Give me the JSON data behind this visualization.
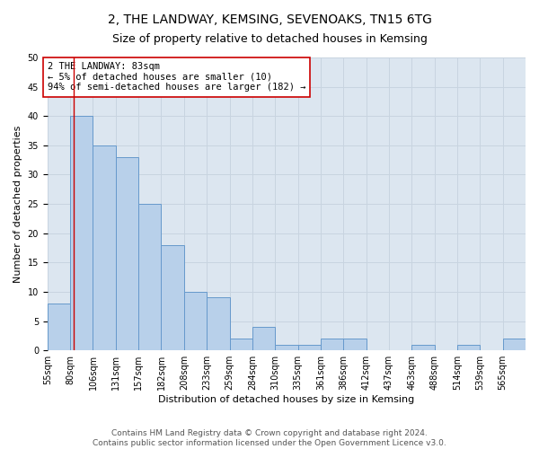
{
  "title": "2, THE LANDWAY, KEMSING, SEVENOAKS, TN15 6TG",
  "subtitle": "Size of property relative to detached houses in Kemsing",
  "xlabel": "Distribution of detached houses by size in Kemsing",
  "ylabel": "Number of detached properties",
  "bin_labels": [
    "55sqm",
    "80sqm",
    "106sqm",
    "131sqm",
    "157sqm",
    "182sqm",
    "208sqm",
    "233sqm",
    "259sqm",
    "284sqm",
    "310sqm",
    "335sqm",
    "361sqm",
    "386sqm",
    "412sqm",
    "437sqm",
    "463sqm",
    "488sqm",
    "514sqm",
    "539sqm",
    "565sqm"
  ],
  "values": [
    8,
    40,
    35,
    33,
    25,
    18,
    10,
    9,
    2,
    4,
    1,
    1,
    2,
    2,
    0,
    0,
    1,
    0,
    1,
    0,
    2
  ],
  "bar_color": "#b8d0ea",
  "bar_edge_color": "#6699cc",
  "property_line_index": 1.15,
  "property_line_color": "#cc0000",
  "annotation_text": "2 THE LANDWAY: 83sqm\n← 5% of detached houses are smaller (10)\n94% of semi-detached houses are larger (182) →",
  "annotation_box_color": "#ffffff",
  "annotation_box_edge": "#cc0000",
  "ylim": [
    0,
    50
  ],
  "yticks": [
    0,
    5,
    10,
    15,
    20,
    25,
    30,
    35,
    40,
    45,
    50
  ],
  "grid_color": "#c8d4e0",
  "bg_color": "#dce6f0",
  "footer_line1": "Contains HM Land Registry data © Crown copyright and database right 2024.",
  "footer_line2": "Contains public sector information licensed under the Open Government Licence v3.0.",
  "title_fontsize": 10,
  "subtitle_fontsize": 9,
  "axis_label_fontsize": 8,
  "tick_fontsize": 7,
  "annotation_fontsize": 7.5,
  "footer_fontsize": 6.5
}
